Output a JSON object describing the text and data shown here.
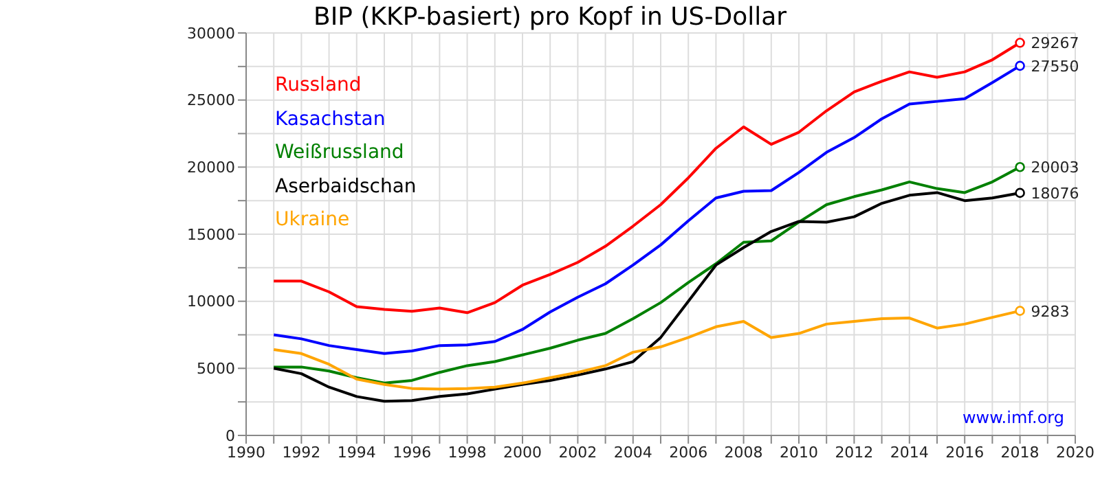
{
  "chart_data": {
    "type": "line",
    "title": "BIP (KKP-basiert) pro Kopf in US-Dollar",
    "x": [
      1991,
      1992,
      1993,
      1994,
      1995,
      1996,
      1997,
      1998,
      1999,
      2000,
      2001,
      2002,
      2003,
      2004,
      2005,
      2006,
      2007,
      2008,
      2009,
      2010,
      2011,
      2012,
      2013,
      2014,
      2015,
      2016,
      2017,
      2018
    ],
    "series": [
      {
        "name": "Russland",
        "color": "#ff0000",
        "values": [
          11500,
          11500,
          10700,
          9600,
          9400,
          9250,
          9500,
          9150,
          9900,
          11200,
          12000,
          12900,
          14100,
          15600,
          17200,
          19200,
          21400,
          23000,
          21700,
          22600,
          24200,
          25600,
          26400,
          27100,
          26700,
          27100,
          28000,
          29267
        ],
        "value_labels": [
          null,
          null,
          null,
          null,
          null,
          null,
          null,
          null,
          null,
          null,
          null,
          null,
          null,
          null,
          null,
          null,
          null,
          null,
          null,
          null,
          null,
          null,
          null,
          null,
          null,
          null,
          null,
          "29267"
        ]
      },
      {
        "name": "Kasachstan",
        "color": "#0000ff",
        "values": [
          7500,
          7200,
          6700,
          6400,
          6100,
          6300,
          6700,
          6750,
          7000,
          7900,
          9200,
          10300,
          11300,
          12700,
          14200,
          16000,
          17700,
          18200,
          18250,
          19600,
          21100,
          22200,
          23600,
          24700,
          24900,
          25100,
          26300,
          27550
        ],
        "value_labels": [
          null,
          null,
          null,
          null,
          null,
          null,
          null,
          null,
          null,
          null,
          null,
          null,
          null,
          null,
          null,
          null,
          null,
          null,
          null,
          null,
          null,
          null,
          null,
          null,
          null,
          null,
          null,
          "27550"
        ]
      },
      {
        "name": "Weißrussland",
        "color": "#008000",
        "values": [
          5100,
          5100,
          4800,
          4300,
          3900,
          4100,
          4700,
          5200,
          5500,
          6000,
          6500,
          7100,
          7600,
          8700,
          9900,
          11400,
          12800,
          14400,
          14500,
          15900,
          17200,
          17800,
          18300,
          18900,
          18400,
          18100,
          18900,
          20003
        ],
        "value_labels": [
          null,
          null,
          null,
          null,
          null,
          null,
          null,
          null,
          null,
          null,
          null,
          null,
          null,
          null,
          null,
          null,
          null,
          null,
          null,
          null,
          null,
          null,
          null,
          null,
          null,
          null,
          null,
          "20003"
        ]
      },
      {
        "name": "Aserbaidschan",
        "color": "#000000",
        "values": [
          5000,
          4600,
          3600,
          2900,
          2550,
          2600,
          2900,
          3100,
          3450,
          3800,
          4100,
          4500,
          4950,
          5500,
          7300,
          10000,
          12700,
          14000,
          15200,
          15950,
          15900,
          16300,
          17300,
          17900,
          18100,
          17500,
          17700,
          18076
        ],
        "value_labels": [
          null,
          null,
          null,
          null,
          null,
          null,
          null,
          null,
          null,
          null,
          null,
          null,
          null,
          null,
          null,
          null,
          null,
          null,
          null,
          null,
          null,
          null,
          null,
          null,
          null,
          null,
          null,
          "18076"
        ]
      },
      {
        "name": "Ukraine",
        "color": "#ffa500",
        "values": [
          6400,
          6100,
          5300,
          4200,
          3800,
          3500,
          3450,
          3500,
          3600,
          3900,
          4300,
          4700,
          5200,
          6200,
          6600,
          7300,
          8100,
          8500,
          7300,
          7600,
          8300,
          8500,
          8700,
          8750,
          8000,
          8300,
          8800,
          9283
        ],
        "value_labels": [
          null,
          null,
          null,
          null,
          null,
          null,
          null,
          null,
          null,
          null,
          null,
          null,
          null,
          null,
          null,
          null,
          null,
          null,
          null,
          null,
          null,
          null,
          null,
          null,
          null,
          null,
          null,
          "9283"
        ]
      }
    ],
    "xlim": [
      1990,
      2020
    ],
    "xticks": [
      1990,
      {
        "value": 1991,
        "label": null
      },
      1992,
      {
        "value": 1993,
        "label": null
      },
      1994,
      {
        "value": 1995,
        "label": null
      },
      1996,
      {
        "value": 1997,
        "label": null
      },
      1998,
      {
        "value": 1999,
        "label": null
      },
      2000,
      {
        "value": 2001,
        "label": null
      },
      2002,
      {
        "value": 2003,
        "label": null
      },
      2004,
      {
        "value": 2005,
        "label": null
      },
      2006,
      {
        "value": 2007,
        "label": null
      },
      2008,
      {
        "value": 2009,
        "label": null
      },
      2010,
      {
        "value": 2011,
        "label": null
      },
      2012,
      {
        "value": 2013,
        "label": null
      },
      2014,
      {
        "value": 2015,
        "label": null
      },
      2016,
      {
        "value": 2017,
        "label": null
      },
      2018,
      {
        "value": 2019,
        "label": null
      },
      2020
    ],
    "ylim": [
      0,
      30000
    ],
    "yticks": [
      0,
      {
        "value": 2500,
        "label": null
      },
      5000,
      {
        "value": 7500,
        "label": null
      },
      10000,
      {
        "value": 12500,
        "label": null
      },
      15000,
      {
        "value": 17500,
        "label": null
      },
      20000,
      {
        "value": 22500,
        "label": null
      },
      25000,
      {
        "value": 27500,
        "label": null
      },
      30000
    ],
    "grid": true,
    "legend": "top left",
    "annotations": [
      "www.imf.org"
    ]
  }
}
